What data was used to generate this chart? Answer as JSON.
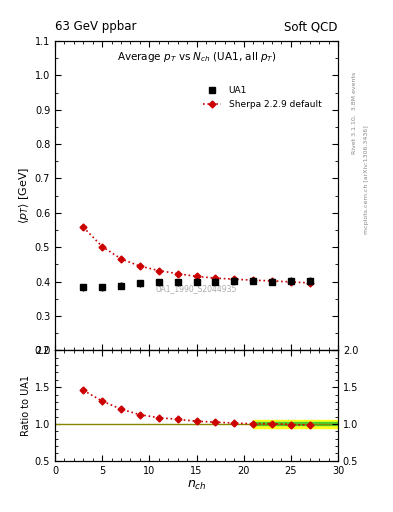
{
  "title_left": "63 GeV ppbar",
  "title_right": "Soft QCD",
  "plot_title": "Average $p_T$ vs $N_{ch}$ (UA1, all $p_T$)",
  "xlabel": "$n_{ch}$",
  "ylabel_main": "$\\langle p_T \\rangle$ [GeV]",
  "ylabel_ratio": "Ratio to UA1",
  "right_label_top": "Rivet 3.1.10,  3.8M events",
  "right_label_bot": "mcplots.cern.ch [arXiv:1306.3436]",
  "watermark": "UA1_1990_S2044935",
  "ua1_x": [
    3,
    5,
    7,
    9,
    11,
    13,
    15,
    17,
    19,
    21,
    23,
    25,
    27
  ],
  "ua1_y": [
    0.383,
    0.383,
    0.388,
    0.395,
    0.398,
    0.398,
    0.4,
    0.4,
    0.402,
    0.403,
    0.4,
    0.402,
    0.402
  ],
  "ua1_yerr": [
    0.01,
    0.01,
    0.01,
    0.01,
    0.01,
    0.01,
    0.01,
    0.01,
    0.01,
    0.01,
    0.01,
    0.01,
    0.01
  ],
  "sherpa_x": [
    3,
    5,
    7,
    9,
    11,
    13,
    15,
    17,
    19,
    21,
    23,
    25,
    27
  ],
  "sherpa_y": [
    0.558,
    0.502,
    0.466,
    0.445,
    0.432,
    0.423,
    0.415,
    0.41,
    0.407,
    0.404,
    0.402,
    0.399,
    0.396
  ],
  "sherpa_yerr": [
    0.005,
    0.003,
    0.003,
    0.003,
    0.003,
    0.003,
    0.003,
    0.003,
    0.003,
    0.003,
    0.003,
    0.003,
    0.003
  ],
  "ylim_main": [
    0.2,
    1.1
  ],
  "ylim_ratio": [
    0.5,
    2.0
  ],
  "xlim": [
    0,
    30
  ],
  "yticks_main": [
    0.2,
    0.3,
    0.4,
    0.5,
    0.6,
    0.7,
    0.8,
    0.9,
    1.0,
    1.1
  ],
  "yticks_ratio": [
    0.5,
    1.0,
    1.5,
    2.0
  ],
  "xticks": [
    0,
    5,
    10,
    15,
    20,
    25,
    30
  ],
  "ua1_color": "#000000",
  "sherpa_color": "#cc0000",
  "band_x_start": 21,
  "band_x_end": 30,
  "band_yellow_lo": 0.95,
  "band_yellow_hi": 1.05,
  "band_green_lo": 0.98,
  "band_green_hi": 1.02
}
